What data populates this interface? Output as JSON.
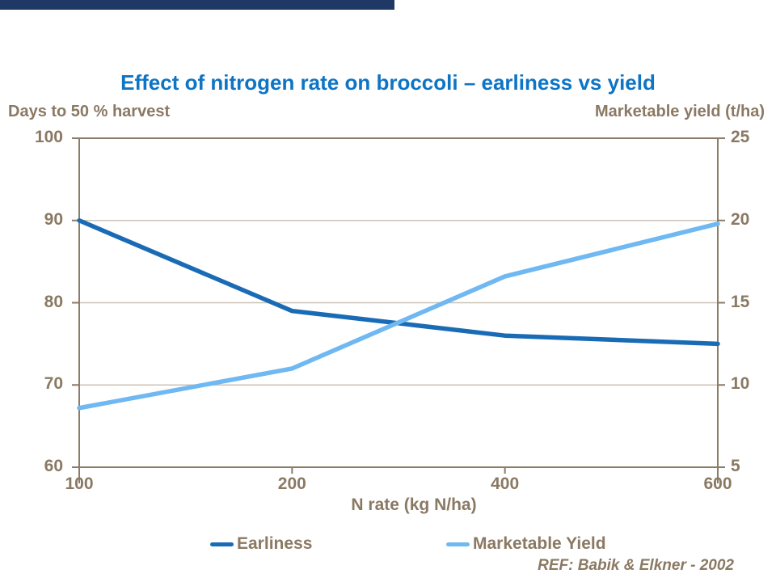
{
  "colors": {
    "topbar": "#1F3864",
    "title_blue": "#0E74C4",
    "text_brown": "#8A7963",
    "axis_line": "#8B7B68",
    "gridline": "#CCC3B6",
    "earliness_line": "#1A6BB5",
    "yield_line": "#6FB8F2"
  },
  "chart_data": {
    "type": "line",
    "title": "Effect of nitrogen rate on broccoli – earliness vs yield",
    "x_categories": [
      "100",
      "200",
      "400",
      "600"
    ],
    "xlabel": "N rate (kg N/ha)",
    "left_axis": {
      "label": "Days to 50 % harvest",
      "ticks": [
        100,
        90,
        80,
        70,
        60
      ],
      "range": [
        60,
        100
      ]
    },
    "right_axis": {
      "label": "Marketable yield (t/ha)",
      "ticks": [
        25,
        20,
        15,
        10,
        5
      ],
      "range": [
        5,
        25
      ]
    },
    "grid": "horizontal",
    "legend_position": "bottom",
    "series": [
      {
        "name": "Earliness",
        "axis": "left",
        "color": "#1A6BB5",
        "values": [
          90,
          79,
          76,
          75
        ]
      },
      {
        "name": "Marketable Yield",
        "axis": "right",
        "color": "#6FB8F2",
        "values": [
          8.6,
          11,
          16.6,
          19.8
        ]
      }
    ],
    "ref": "REF: Babik & Elkner - 2002"
  }
}
